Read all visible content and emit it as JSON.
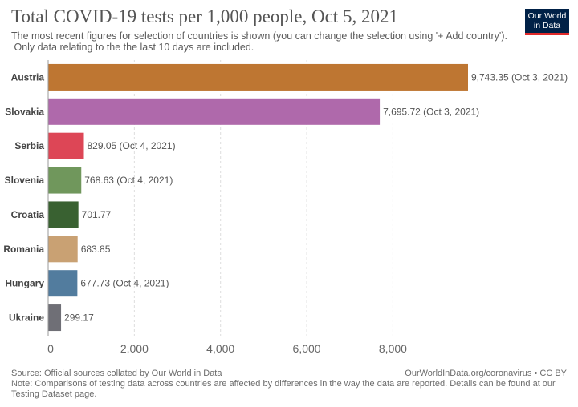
{
  "logo": {
    "line1": "Our World",
    "line2": "in Data"
  },
  "footer": {
    "source": "Source: Official sources collated by Our World in Data",
    "license": "OurWorldInData.org/coronavirus • CC BY",
    "note_line1": "Note: Comparisons of testing data across countries are affected by differences in the way the data are reported. Details can be found at our",
    "note_line2": "Testing Dataset page."
  },
  "chart_data": {
    "type": "bar",
    "orientation": "horizontal",
    "title": "Total COVID-19 tests per 1,000 people, Oct 5, 2021",
    "subtitle_line1": "The most recent figures for selection of countries is shown (you can change the selection using '+ Add country').",
    "subtitle_line2": " Only data relating to the the last 10 days are included.",
    "categories": [
      "Austria",
      "Slovakia",
      "Serbia",
      "Slovenia",
      "Croatia",
      "Romania",
      "Hungary",
      "Ukraine"
    ],
    "values": [
      9743.35,
      7695.72,
      829.05,
      768.63,
      701.77,
      683.85,
      677.73,
      299.17
    ],
    "value_labels": [
      "9,743.35 (Oct 3, 2021)",
      "7,695.72 (Oct 3, 2021)",
      "829.05 (Oct 4, 2021)",
      "768.63 (Oct 4, 2021)",
      "701.77",
      "683.85",
      "677.73 (Oct 4, 2021)",
      "299.17"
    ],
    "colors": [
      "#be7632",
      "#af69ab",
      "#dd4656",
      "#70975c",
      "#396131",
      "#c9a173",
      "#527c9e",
      "#6f6f76"
    ],
    "xlim": [
      0,
      9743.35
    ],
    "xticks": [
      0,
      2000,
      4000,
      6000,
      8000
    ],
    "xtick_labels": [
      "0",
      "2,000",
      "4,000",
      "6,000",
      "8,000"
    ],
    "grid": true,
    "legend": "none"
  }
}
